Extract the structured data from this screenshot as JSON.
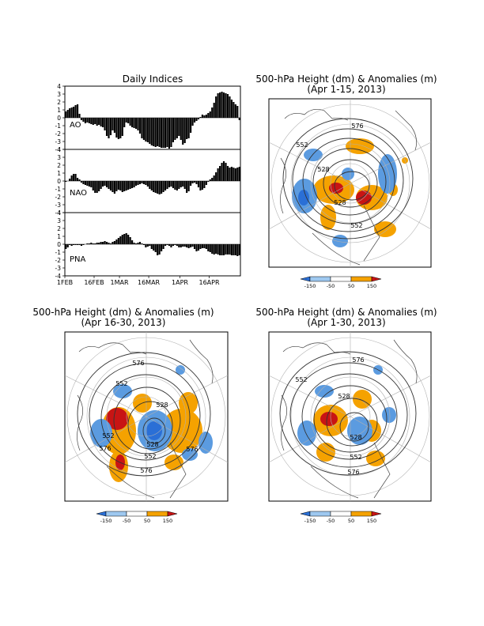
{
  "indices_panel": {
    "title": "Daily Indices",
    "x_tick_labels": [
      "1FEB",
      "16FEB",
      "1MAR",
      "16MAR",
      "1APR",
      "16APR"
    ],
    "y_tick_labels": [
      "-4",
      "-3",
      "-2",
      "-1",
      "0",
      "1",
      "2",
      "3",
      "4"
    ]
  },
  "map_panels": [
    {
      "title_line1": "500-hPa Height (dm) & Anomalies (m)",
      "title_line2": "(Apr 1-15, 2013)",
      "contour_labels": [
        "576",
        "552",
        "528",
        "528",
        "552"
      ]
    },
    {
      "title_line1": "500-hPa Height (dm) & Anomalies (m)",
      "title_line2": "(Apr 16-30, 2013)",
      "contour_labels": [
        "576",
        "552",
        "528",
        "552",
        "576",
        "528",
        "552",
        "576",
        "576"
      ]
    },
    {
      "title_line1": "500-hPa Height (dm) & Anomalies (m)",
      "title_line2": "(Apr 1-30, 2013)",
      "contour_labels": [
        "576",
        "552",
        "528",
        "528",
        "552",
        "576"
      ]
    }
  ],
  "colorbar": {
    "labels": [
      "-150",
      "-50",
      "50",
      "150"
    ],
    "colors": [
      "#2a6fd6",
      "#9ec8f0",
      "#ffffff",
      "#f5a200",
      "#c81414"
    ]
  },
  "chart_data": [
    {
      "type": "bar",
      "name": "AO",
      "title": "AO",
      "x_start": "1FEB",
      "ylim": [
        -4,
        4
      ],
      "values": [
        0.8,
        1.0,
        1.2,
        1.3,
        1.4,
        1.6,
        1.7,
        0.5,
        -0.3,
        -0.5,
        -0.7,
        -0.6,
        -0.7,
        -0.8,
        -0.9,
        -0.8,
        -1.0,
        -0.9,
        -1.1,
        -1.2,
        -1.6,
        -2.3,
        -2.6,
        -2.2,
        -1.6,
        -1.9,
        -2.5,
        -2.7,
        -2.6,
        -2.3,
        -1.2,
        -0.6,
        -0.7,
        -1.0,
        -1.2,
        -1.3,
        -1.4,
        -1.6,
        -2.0,
        -2.6,
        -2.8,
        -3.0,
        -3.1,
        -3.3,
        -3.5,
        -3.6,
        -3.7,
        -3.6,
        -3.7,
        -3.8,
        -3.8,
        -3.8,
        -3.7,
        -3.9,
        -3.7,
        -3.1,
        -2.8,
        -2.6,
        -2.3,
        -2.8,
        -3.4,
        -3.2,
        -2.7,
        -2.6,
        -1.9,
        -1.0,
        -0.6,
        -0.4,
        -0.2,
        0.1,
        0.4,
        0.3,
        0.4,
        0.6,
        0.8,
        1.3,
        1.9,
        2.7,
        3.1,
        3.2,
        3.3,
        3.2,
        3.1,
        3.0,
        2.7,
        2.3,
        2.0,
        1.7,
        1.5,
        -0.3
      ]
    },
    {
      "type": "bar",
      "name": "NAO",
      "title": "NAO",
      "x_start": "1FEB",
      "ylim": [
        -4,
        4
      ],
      "values": [
        -0.1,
        0.0,
        0.3,
        0.7,
        0.9,
        0.9,
        0.4,
        0.2,
        -0.2,
        -0.4,
        -0.5,
        -0.6,
        -0.7,
        -0.8,
        -1.2,
        -1.5,
        -1.5,
        -1.3,
        -1.0,
        -0.7,
        -0.6,
        -0.8,
        -1.0,
        -1.2,
        -1.4,
        -1.6,
        -1.3,
        -1.1,
        -1.2,
        -1.4,
        -1.3,
        -1.2,
        -1.1,
        -1.0,
        -0.9,
        -0.8,
        -0.6,
        -0.5,
        -0.4,
        -0.3,
        -0.4,
        -0.5,
        -0.7,
        -1.0,
        -1.2,
        -1.4,
        -1.5,
        -1.6,
        -1.7,
        -1.6,
        -1.4,
        -1.2,
        -1.0,
        -0.8,
        -0.7,
        -0.9,
        -1.1,
        -1.2,
        -1.0,
        -0.8,
        -0.7,
        -1.0,
        -1.5,
        -1.3,
        -0.6,
        -0.3,
        -0.2,
        -0.4,
        -0.8,
        -1.2,
        -1.1,
        -0.9,
        -0.5,
        -0.1,
        0.2,
        0.4,
        0.7,
        1.1,
        1.6,
        1.9,
        2.3,
        2.5,
        2.3,
        1.9,
        1.7,
        1.8,
        1.7,
        1.6,
        1.7,
        1.8
      ]
    },
    {
      "type": "bar",
      "name": "PNA",
      "title": "PNA",
      "x_start": "1FEB",
      "ylim": [
        -4,
        4
      ],
      "values": [
        -0.6,
        -0.4,
        -0.1,
        -0.2,
        -0.1,
        -0.1,
        -0.1,
        -0.1,
        -0.2,
        -0.1,
        0.0,
        0.1,
        0.1,
        0.2,
        0.1,
        0.1,
        0.2,
        0.2,
        0.3,
        0.3,
        0.4,
        0.3,
        0.2,
        0.1,
        0.3,
        0.4,
        0.6,
        0.8,
        1.0,
        1.2,
        1.3,
        1.4,
        1.2,
        0.9,
        0.5,
        0.2,
        0.1,
        0.2,
        0.3,
        0.1,
        -0.1,
        -0.4,
        -0.3,
        -0.2,
        -0.6,
        -0.8,
        -1.0,
        -1.4,
        -1.3,
        -0.9,
        -0.6,
        -0.2,
        -0.1,
        -0.2,
        -0.4,
        -0.2,
        -0.1,
        -0.2,
        -0.4,
        -0.4,
        -0.3,
        -0.3,
        -0.4,
        -0.5,
        -0.4,
        -0.3,
        -0.6,
        -0.9,
        -0.8,
        -0.6,
        -0.5,
        -0.5,
        -0.6,
        -0.9,
        -1.0,
        -1.2,
        -1.3,
        -1.2,
        -1.3,
        -1.4,
        -1.4,
        -1.4,
        -1.3,
        -1.3,
        -1.3,
        -1.4,
        -1.4,
        -1.4,
        -1.5,
        -1.4
      ]
    }
  ]
}
